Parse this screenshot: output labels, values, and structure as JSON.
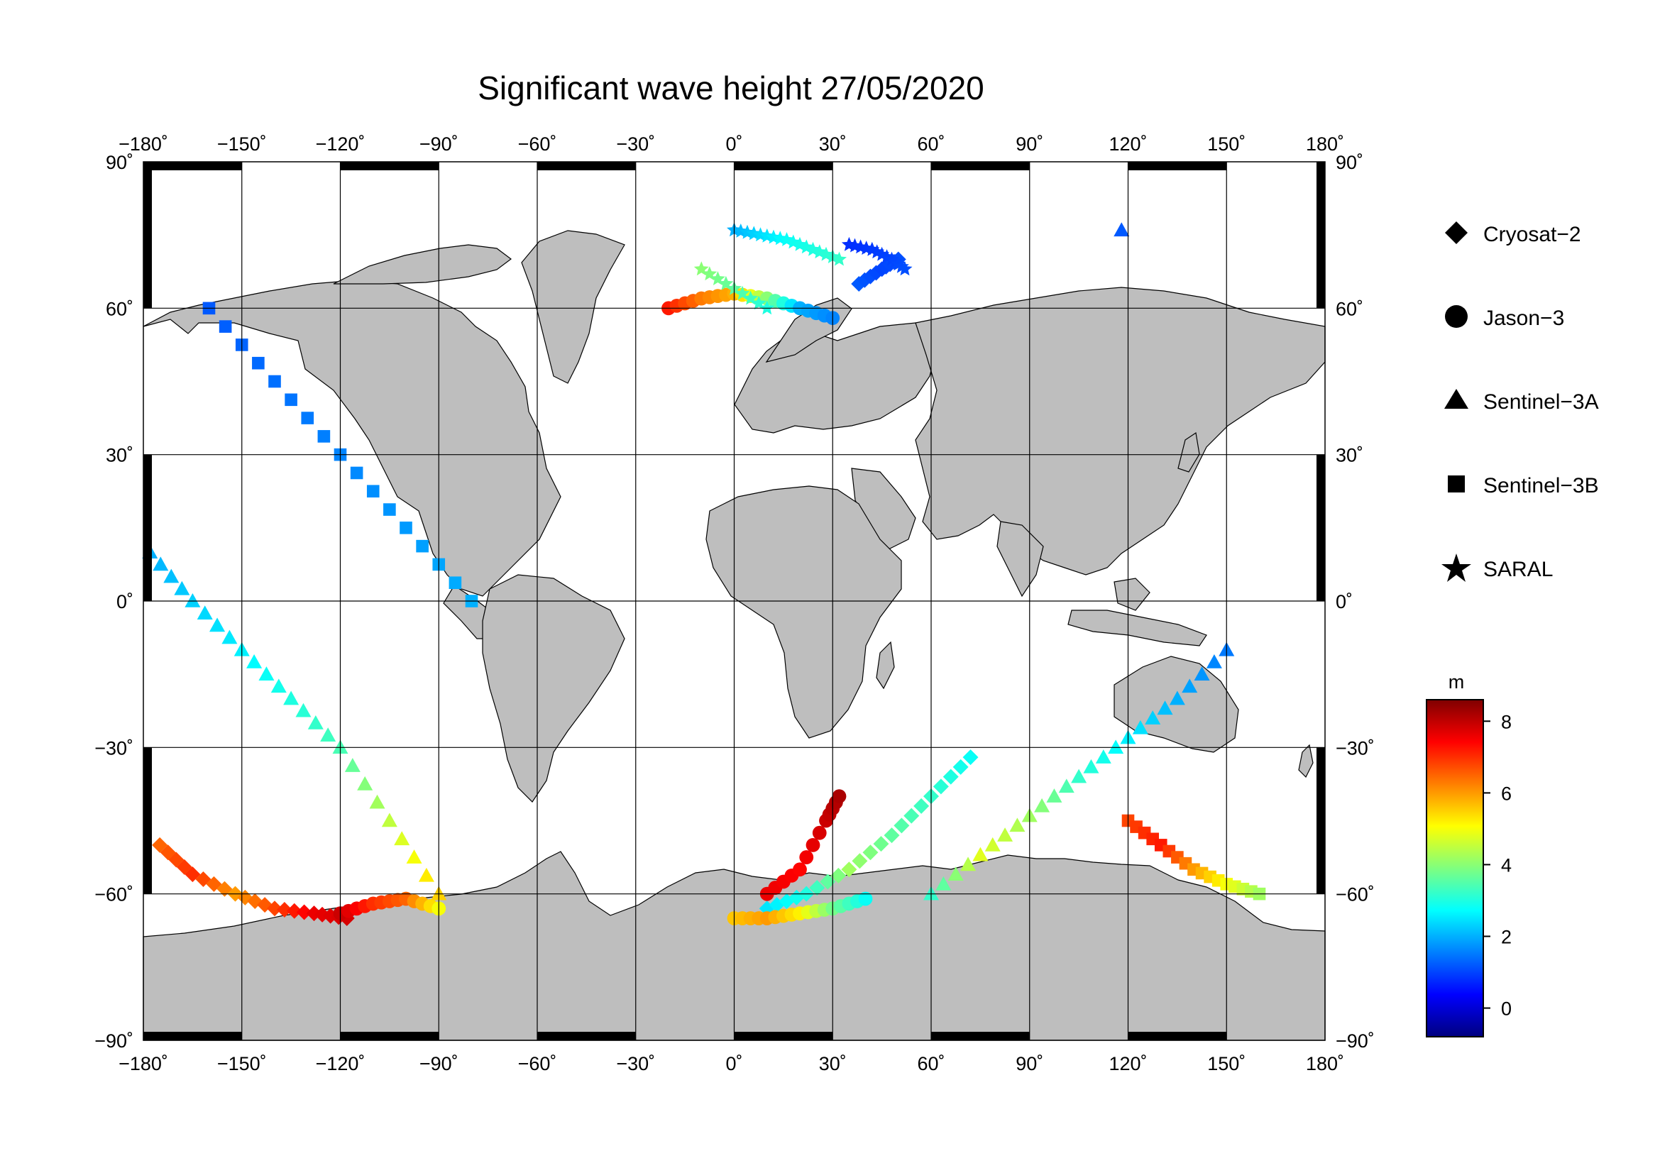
{
  "title": "Significant wave height 27/05/2020",
  "map": {
    "projection": "equirectangular",
    "lon_range": [
      -180,
      180
    ],
    "lat_range": [
      -90,
      90
    ],
    "gridlines": true,
    "land_color": "#bebebe",
    "ocean_color": "#ffffff",
    "lon_ticks": [
      "−180˚",
      "−150˚",
      "−120˚",
      "−90˚",
      "−60˚",
      "−30˚",
      "0˚",
      "30˚",
      "60˚",
      "90˚",
      "120˚",
      "150˚",
      "180˚"
    ],
    "lat_ticks_left": [
      "90˚",
      "60˚",
      "30˚",
      "0˚",
      "−30˚",
      "−60˚",
      "−90˚"
    ],
    "lat_ticks_right": [
      "90˚",
      "60˚",
      "30˚",
      "0˚",
      "−30˚",
      "−60˚",
      "−90˚"
    ]
  },
  "legend": {
    "position": "right",
    "items": [
      {
        "symbol": "diamond-icon",
        "label": "Cryosat−2"
      },
      {
        "symbol": "circle-icon",
        "label": "Jason−3"
      },
      {
        "symbol": "triangle-icon",
        "label": "Sentinel−3A"
      },
      {
        "symbol": "square-icon",
        "label": "Sentinel−3B"
      },
      {
        "symbol": "star-icon",
        "label": "SARAL"
      }
    ]
  },
  "colorbar": {
    "unit": "m",
    "range": [
      -0.8,
      8.6
    ],
    "ticks": [
      "0",
      "2",
      "4",
      "6",
      "8"
    ],
    "colormap": "jet",
    "colors": [
      "#00007f",
      "#0000ff",
      "#007fff",
      "#00ffff",
      "#7fff7f",
      "#ffff00",
      "#ff7f00",
      "#ff0000",
      "#7f0000"
    ]
  },
  "chart_data": {
    "type": "scatter",
    "x_label": "",
    "y_label": "",
    "xlim": [
      -180,
      180
    ],
    "ylim": [
      -90,
      90
    ],
    "value_unit": "m",
    "series": [
      {
        "name": "Cryosat−2",
        "marker": "diamond",
        "tracks": [
          {
            "lon": [
              -175,
              -165,
              -152,
              -140,
              -128,
              -118
            ],
            "lat": [
              -50,
              -56,
              -60,
              -63,
              -64,
              -65
            ],
            "hs": [
              6.5,
              7.0,
              6.0,
              6.8,
              7.6,
              7.8
            ]
          },
          {
            "lon": [
              10,
              22,
              35,
              48,
              60,
              72
            ],
            "lat": [
              -63,
              -60,
              -55,
              -48,
              -40,
              -32
            ],
            "hs": [
              2.5,
              3.0,
              4.2,
              3.6,
              3.2,
              2.8
            ]
          },
          {
            "lon": [
              38,
              45,
              50
            ],
            "lat": [
              65,
              68,
              70
            ],
            "hs": [
              1.2,
              1.0,
              1.1
            ]
          }
        ]
      },
      {
        "name": "Jason−3",
        "marker": "circle",
        "tracks": [
          {
            "lon": [
              -20,
              -10,
              0,
              10,
              20,
              30
            ],
            "lat": [
              60,
              62,
              63,
              62,
              60,
              58
            ],
            "hs": [
              7.2,
              6.3,
              5.8,
              4.0,
              2.0,
              1.6
            ]
          },
          {
            "lon": [
              0,
              10,
              20,
              30,
              40
            ],
            "lat": [
              -65,
              -65,
              -64,
              -63,
              -61
            ],
            "hs": [
              5.6,
              6.0,
              5.2,
              3.8,
              2.8
            ]
          },
          {
            "lon": [
              10,
              20,
              28,
              32
            ],
            "lat": [
              -60,
              -55,
              -45,
              -40
            ],
            "hs": [
              7.6,
              7.4,
              7.9,
              8.2
            ]
          },
          {
            "lon": [
              -120,
              -110,
              -100,
              -90
            ],
            "lat": [
              -64,
              -62,
              -61,
              -63
            ],
            "hs": [
              7.9,
              7.0,
              6.5,
              5.0
            ]
          }
        ]
      },
      {
        "name": "Sentinel−3A",
        "marker": "triangle",
        "tracks": [
          {
            "lon": [
              -178,
              -165,
              -150,
              -135,
              -120,
              -105,
              -90
            ],
            "lat": [
              10,
              0,
              -10,
              -20,
              -30,
              -45,
              -60
            ],
            "hs": [
              2.0,
              2.3,
              2.6,
              3.0,
              3.4,
              4.5,
              5.5
            ]
          },
          {
            "lon": [
              60,
              75,
              90,
              105,
              120,
              135,
              150
            ],
            "lat": [
              -60,
              -52,
              -44,
              -36,
              -28,
              -20,
              -10
            ],
            "hs": [
              3.2,
              4.8,
              4.2,
              3.2,
              2.6,
              2.0,
              1.5
            ]
          },
          {
            "lon": [
              118
            ],
            "lat": [
              76
            ],
            "hs": [
              1.2
            ]
          }
        ]
      },
      {
        "name": "Sentinel−3B",
        "marker": "square",
        "tracks": [
          {
            "lon": [
              -160,
              -140,
              -120,
              -100,
              -80
            ],
            "lat": [
              60,
              45,
              30,
              15,
              0
            ],
            "hs": [
              1.2,
              1.4,
              1.6,
              1.8,
              2.0
            ]
          },
          {
            "lon": [
              120,
              130,
              140,
              150,
              160
            ],
            "lat": [
              -45,
              -50,
              -55,
              -58,
              -60
            ],
            "hs": [
              6.8,
              7.2,
              6.0,
              5.0,
              4.2
            ]
          }
        ]
      },
      {
        "name": "SARAL",
        "marker": "star",
        "tracks": [
          {
            "lon": [
              0,
              8,
              16,
              24,
              32
            ],
            "lat": [
              76,
              75,
              74,
              72,
              70
            ],
            "hs": [
              2.0,
              2.4,
              2.8,
              3.0,
              3.2
            ]
          },
          {
            "lon": [
              35,
              42,
              48,
              52
            ],
            "lat": [
              73,
              72,
              70,
              68
            ],
            "hs": [
              0.8,
              0.9,
              1.0,
              1.1
            ]
          },
          {
            "lon": [
              -10,
              0,
              10
            ],
            "lat": [
              68,
              64,
              60
            ],
            "hs": [
              4.0,
              3.6,
              3.0
            ]
          }
        ]
      }
    ]
  }
}
